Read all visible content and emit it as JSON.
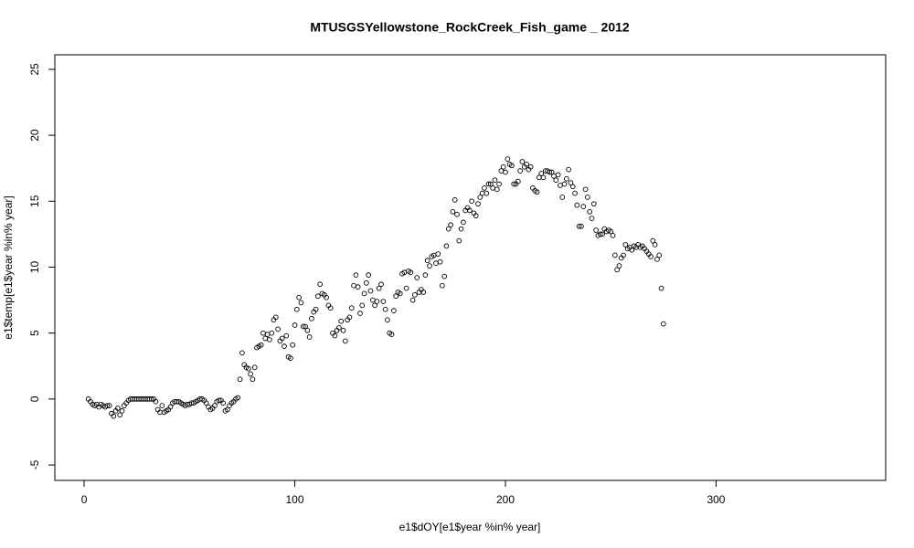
{
  "chart_data": {
    "type": "scatter",
    "title": "MTUSGSYellowstone_RockCreek_Fish_game _ 2012",
    "x_label": "e1$dOY[e1$year %in% year]",
    "y_label": "e1$temp[e1$year %in% year]",
    "xlim": [
      -13.9,
      380.5
    ],
    "ylim": [
      -6.17,
      26.1
    ],
    "xticks": [
      0,
      100,
      200,
      300
    ],
    "yticks": [
      -5,
      0,
      5,
      10,
      15,
      20,
      25
    ],
    "color": "#000000",
    "x": [
      2,
      3,
      4,
      5,
      6,
      7,
      8,
      9,
      10,
      11,
      12,
      13,
      14,
      15,
      16,
      17,
      18,
      19,
      20,
      21,
      22,
      23,
      24,
      25,
      26,
      27,
      28,
      29,
      30,
      31,
      32,
      33,
      34,
      35,
      36,
      37,
      38,
      39,
      40,
      41,
      42,
      43,
      44,
      45,
      46,
      47,
      48,
      49,
      50,
      51,
      52,
      53,
      54,
      55,
      56,
      57,
      58,
      59,
      60,
      61,
      62,
      63,
      64,
      65,
      66,
      67,
      68,
      69,
      70,
      71,
      72,
      73,
      74,
      75,
      76,
      77,
      78,
      79,
      80,
      81,
      82,
      83,
      84,
      85,
      86,
      87,
      88,
      89,
      90,
      91,
      92,
      93,
      94,
      95,
      96,
      97,
      98,
      99,
      100,
      101,
      102,
      103,
      104,
      105,
      106,
      107,
      108,
      109,
      110,
      111,
      112,
      113,
      114,
      115,
      116,
      117,
      118,
      119,
      120,
      121,
      122,
      123,
      124,
      125,
      126,
      127,
      128,
      129,
      130,
      131,
      132,
      133,
      134,
      135,
      136,
      137,
      138,
      139,
      140,
      141,
      142,
      143,
      144,
      145,
      146,
      147,
      148,
      149,
      150,
      151,
      152,
      153,
      154,
      155,
      156,
      157,
      158,
      159,
      160,
      161,
      162,
      163,
      164,
      165,
      166,
      167,
      168,
      169,
      170,
      171,
      172,
      173,
      174,
      175,
      176,
      177,
      178,
      179,
      180,
      181,
      182,
      183,
      184,
      185,
      186,
      187,
      188,
      189,
      190,
      191,
      192,
      193,
      194,
      195,
      196,
      197,
      198,
      199,
      200,
      201,
      202,
      203,
      204,
      205,
      206,
      207,
      208,
      209,
      210,
      211,
      212,
      213,
      214,
      215,
      216,
      217,
      218,
      219,
      220,
      221,
      222,
      223,
      224,
      225,
      226,
      227,
      228,
      229,
      230,
      231,
      232,
      233,
      234,
      235,
      236,
      237,
      238,
      239,
      240,
      241,
      242,
      243,
      244,
      245,
      246,
      247,
      248,
      249,
      250,
      251,
      252,
      253,
      254,
      255,
      256,
      257,
      258,
      259,
      260,
      261,
      262,
      263,
      264,
      265,
      266,
      267,
      268,
      269,
      270,
      271,
      272,
      273,
      274,
      275
    ],
    "values": [
      0,
      -0.2,
      -0.4,
      -0.5,
      -0.4,
      -0.6,
      -0.4,
      -0.5,
      -0.6,
      -0.5,
      -0.5,
      -1.1,
      -1.3,
      -0.9,
      -0.7,
      -1.2,
      -0.9,
      -0.5,
      -0.3,
      -0.1,
      0,
      0,
      0,
      0,
      0,
      0,
      0,
      0,
      0,
      0,
      0,
      0,
      -0.2,
      -0.8,
      -1.0,
      -0.5,
      -1.0,
      -0.9,
      -0.8,
      -0.6,
      -0.3,
      -0.2,
      -0.2,
      -0.2,
      -0.3,
      -0.4,
      -0.5,
      -0.4,
      -0.4,
      -0.3,
      -0.3,
      -0.2,
      -0.1,
      0,
      0,
      -0.1,
      -0.3,
      -0.6,
      -0.8,
      -0.7,
      -0.5,
      -0.2,
      -0.1,
      -0.1,
      -0.3,
      -0.9,
      -0.8,
      -0.5,
      -0.3,
      -0.2,
      0,
      0.1,
      1.5,
      3.5,
      2.6,
      2.4,
      2.3,
      1.9,
      1.5,
      2.4,
      3.9,
      4.0,
      4.1,
      5.0,
      4.6,
      4.9,
      4.5,
      5.0,
      6.0,
      6.2,
      5.3,
      4.4,
      4.6,
      4.0,
      4.8,
      3.2,
      3.1,
      4.1,
      5.6,
      6.8,
      7.7,
      7.3,
      5.5,
      5.5,
      5.2,
      4.7,
      6.1,
      6.6,
      6.8,
      7.8,
      8.7,
      8.0,
      7.9,
      7.7,
      7.1,
      6.9,
      5.0,
      4.8,
      5.2,
      5.4,
      5.9,
      5.2,
      4.4,
      6.0,
      6.2,
      6.9,
      8.6,
      9.4,
      8.5,
      6.5,
      7.1,
      8.0,
      8.8,
      9.4,
      8.2,
      7.5,
      7.1,
      7.4,
      8.4,
      8.7,
      7.4,
      6.8,
      6.0,
      5.0,
      4.9,
      6.7,
      7.8,
      8.1,
      8.0,
      9.5,
      9.6,
      8.4,
      9.7,
      9.6,
      7.5,
      7.9,
      9.2,
      8.1,
      8.3,
      8.1,
      9.4,
      10.5,
      10.1,
      10.8,
      10.9,
      10.3,
      11.0,
      10.4,
      8.6,
      9.3,
      11.6,
      12.9,
      13.2,
      14.2,
      15.1,
      14.0,
      12.0,
      12.9,
      13.4,
      14.3,
      14.5,
      14.3,
      15.0,
      14.1,
      13.9,
      14.8,
      15.3,
      15.6,
      16.0,
      15.6,
      16.3,
      16.3,
      16.0,
      16.6,
      15.9,
      16.3,
      17.3,
      17.6,
      17.2,
      18.2,
      17.8,
      17.7,
      16.3,
      16.3,
      16.5,
      17.3,
      18.0,
      17.6,
      17.8,
      17.4,
      17.6,
      16.0,
      15.8,
      15.7,
      16.8,
      17.1,
      16.8,
      17.3,
      17.3,
      17.2,
      17.2,
      16.9,
      16.6,
      17.0,
      16.2,
      15.3,
      16.3,
      16.7,
      17.4,
      16.4,
      16.1,
      15.6,
      14.7,
      13.1,
      13.1,
      14.6,
      15.9,
      15.3,
      14.2,
      13.7,
      14.8,
      12.8,
      12.4,
      12.5,
      12.5,
      12.9,
      12.7,
      12.8,
      12.7,
      12.4,
      10.9,
      9.8,
      10.1,
      10.7,
      10.9,
      11.7,
      11.4,
      11.5,
      11.3,
      11.6,
      11.5,
      11.7,
      11.5,
      11.6,
      11.4,
      11.2,
      11.0,
      10.8,
      12.0,
      11.7,
      10.6,
      10.9,
      8.4,
      5.7
    ]
  }
}
